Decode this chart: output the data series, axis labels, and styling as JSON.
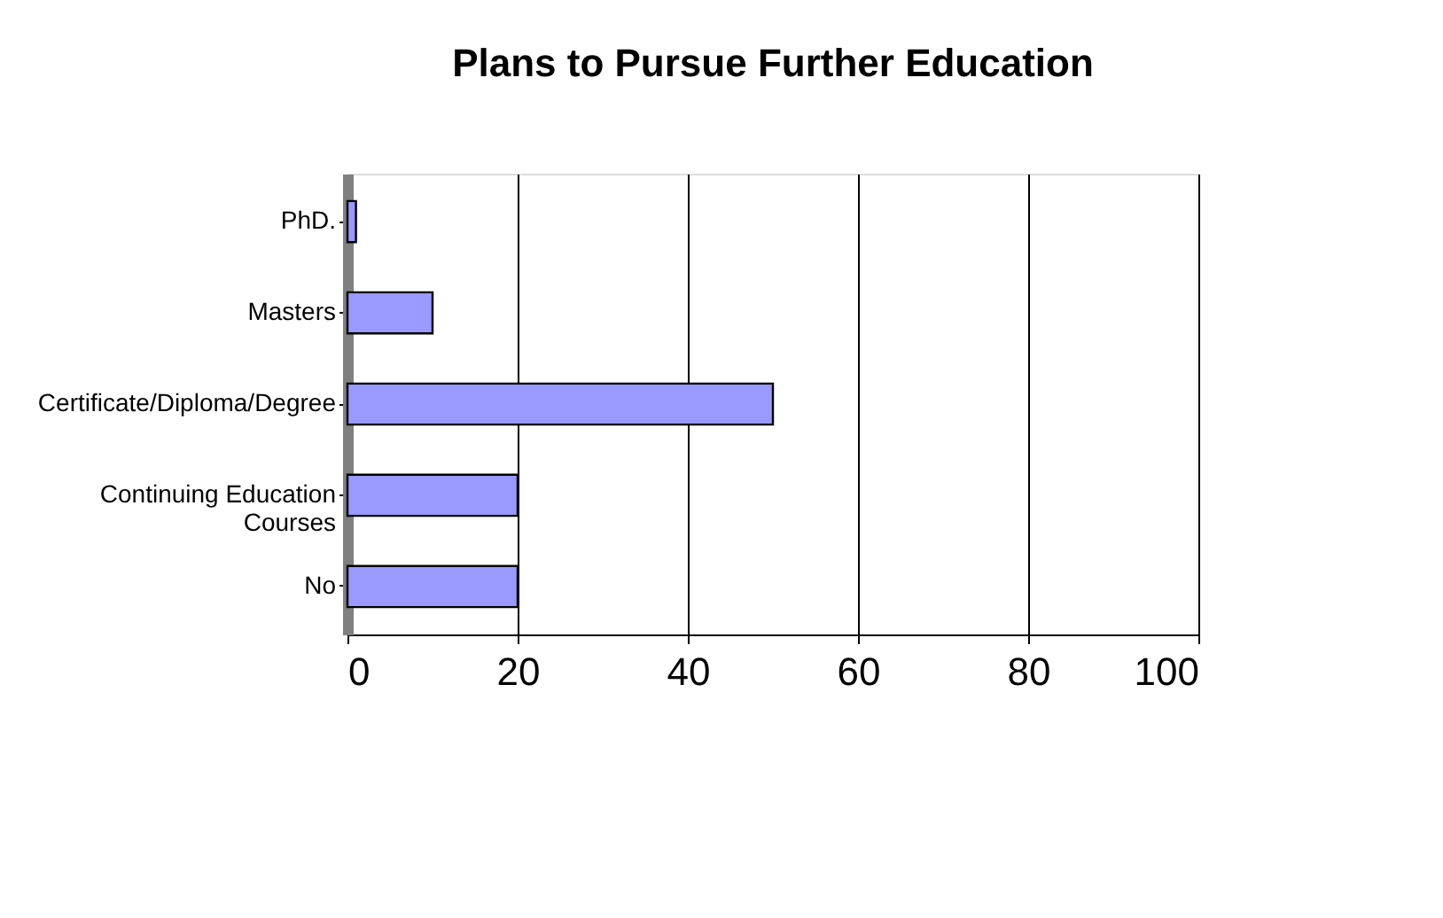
{
  "chart_data": {
    "type": "bar",
    "orientation": "horizontal",
    "title": "Plans to Pursue Further Education",
    "categories": [
      "PhD.",
      "Masters",
      "Certificate/Diploma/Degree",
      "Continuing Education\nCourses",
      "No"
    ],
    "values": [
      1,
      10,
      50,
      20,
      20
    ],
    "color": "#9999ff",
    "xlim": [
      0,
      100
    ],
    "xticks": [
      0,
      20,
      40,
      60,
      80,
      100
    ],
    "grid": "x"
  }
}
